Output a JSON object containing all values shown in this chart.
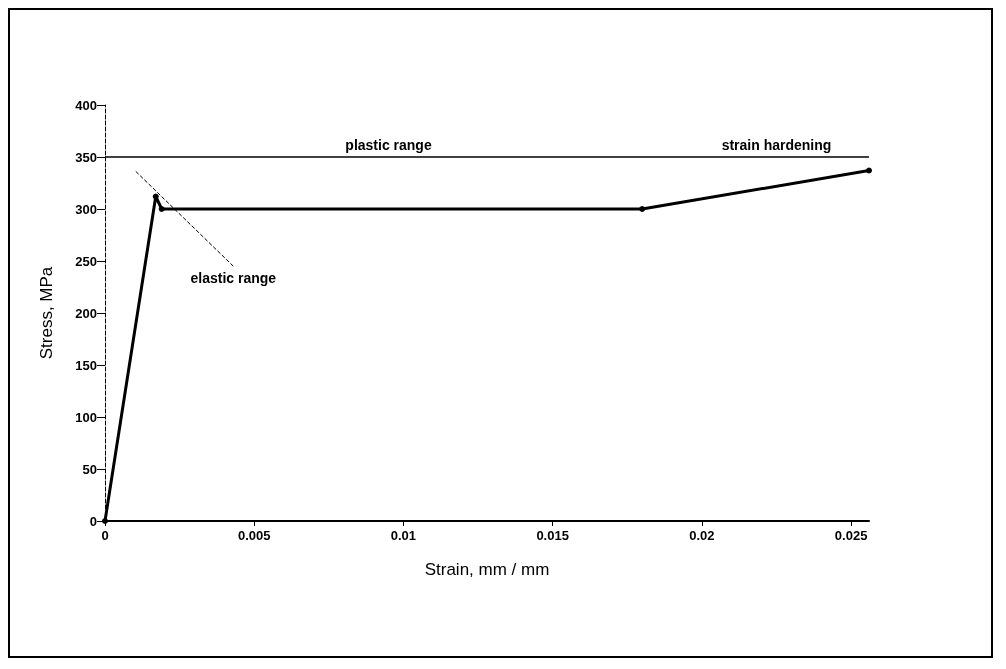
{
  "chart_data": {
    "type": "line",
    "xlabel": "Strain, mm / mm",
    "ylabel": "Stress, MPa",
    "x": [
      0,
      0.0017,
      0.0019,
      0.018,
      0.0256
    ],
    "series": [
      {
        "color": "#000000",
        "values": [
          0,
          312,
          300,
          300,
          337
        ]
      }
    ],
    "xlim": [
      0,
      0.0256
    ],
    "xticks": [
      0,
      0.005,
      0.01,
      0.015,
      0.02,
      0.025
    ],
    "ylim": [
      0,
      400
    ],
    "yticks": [
      0,
      50,
      100,
      150,
      200,
      250,
      300,
      350,
      400
    ],
    "ref_lines": [
      {
        "axis": "y",
        "value": 350,
        "label": null
      }
    ],
    "annotations": [
      {
        "text": "plastic range",
        "x": 0.0095,
        "y": 350
      },
      {
        "text": "strain hardening",
        "x": 0.0225,
        "y": 350
      },
      "elastic range"
    ],
    "grid": false,
    "marker": "circle",
    "line_style": "solid"
  }
}
